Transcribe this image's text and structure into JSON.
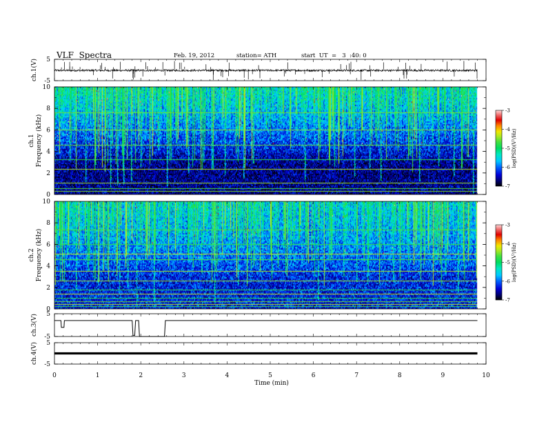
{
  "header": {
    "title": "VLF  Spectra",
    "date": "Feb. 19, 2012",
    "station": "station= ATH",
    "start": "start  UT  =   3  :40: 0"
  },
  "colorbar": {
    "label": "log(PSD)(V²/Hz)",
    "ticks": [
      "-3",
      "-4",
      "-5",
      "-6",
      "-7"
    ],
    "range": [
      -7,
      -3
    ],
    "colors": [
      "#000000",
      "#00006e",
      "#0000d8",
      "#0064ff",
      "#00c8ff",
      "#00e8c0",
      "#00dc60",
      "#40e040",
      "#b0e820",
      "#f0e800",
      "#ff8000",
      "#e00000",
      "#f07070",
      "#ffd8d8"
    ]
  },
  "chart_data": [
    {
      "type": "line",
      "ylabel": "ch.1(V)",
      "ylim": [
        -5,
        5
      ],
      "yticks": [
        "5",
        "-5"
      ],
      "x": [
        0,
        9.8
      ],
      "series": [
        {
          "values": [
            -0.2,
            -0.2
          ]
        }
      ],
      "annotations": "dense noise trace near 0 V with sharp spikes (atmospherics)"
    },
    {
      "type": "heatmap",
      "ylabel_top": "ch.1",
      "ylabel": "Frequency  (kHz)",
      "ylim": [
        0,
        10
      ],
      "yticks": [
        "0",
        "2",
        "4",
        "6",
        "8",
        "10"
      ],
      "xlim": [
        0,
        10
      ],
      "data_x_end": 9.8,
      "background_level": -6.6,
      "noise_level_high_freq": -5.4,
      "tonal_lines_khz": [
        0.3,
        0.55,
        1.1,
        2.4,
        3.3,
        4.6,
        6.0,
        7.6
      ],
      "sferic_times_min": [
        0.35,
        0.55,
        0.72,
        0.95,
        1.3,
        1.45,
        1.6,
        1.78,
        2.0,
        2.2,
        2.4,
        2.6,
        2.8,
        3.1,
        3.45,
        3.65,
        3.95,
        4.2,
        4.38,
        4.6,
        4.9,
        5.2,
        5.45,
        5.8,
        6.15,
        6.35,
        6.6,
        6.95,
        7.3,
        7.55,
        7.9,
        8.25,
        8.45,
        8.75,
        8.9,
        9.25,
        9.5,
        9.7
      ]
    },
    {
      "type": "heatmap",
      "ylabel_top": "ch.2",
      "ylabel": "Frequency  (kHz)",
      "ylim": [
        0,
        10
      ],
      "yticks": [
        "0",
        "2",
        "4",
        "6",
        "8",
        "10"
      ],
      "xlim": [
        0,
        10
      ],
      "data_x_end": 9.8,
      "background_level": -6.3,
      "noise_level_high_freq": -5.5,
      "tonal_lines_khz": [
        0.25,
        0.45,
        0.7,
        1.0,
        1.4,
        1.8,
        2.6,
        3.5,
        4.6,
        5.1,
        6.0,
        7.4
      ],
      "sferic_times_min": [
        0.3,
        0.5,
        0.75,
        1.0,
        1.25,
        1.5,
        1.7,
        1.9,
        2.1,
        2.3,
        2.55,
        2.85,
        3.1,
        3.4,
        3.7,
        3.95,
        4.25,
        4.45,
        4.7,
        5.0,
        5.3,
        5.55,
        5.85,
        6.1,
        6.4,
        6.7,
        7.0,
        7.25,
        7.55,
        7.85,
        8.2,
        8.5,
        8.8,
        9.05,
        9.35,
        9.6
      ]
    },
    {
      "type": "line",
      "ylabel": "ch.3(V)",
      "ylim": [
        -5,
        5
      ],
      "yticks": [
        "5",
        "-5"
      ],
      "x": [
        0,
        0.15,
        0.16,
        0.22,
        0.23,
        1.8,
        1.82,
        1.86,
        1.88,
        1.95,
        1.97,
        2.55,
        2.57,
        9.8
      ],
      "series": [
        {
          "values": [
            2.0,
            2.0,
            -1.0,
            -1.0,
            2.0,
            2.0,
            -4.5,
            -4.5,
            2.0,
            2.0,
            -5.0,
            -5.0,
            2.0,
            2.0
          ]
        }
      ]
    },
    {
      "type": "line",
      "ylabel": "ch.4(V)",
      "ylim": [
        -5,
        5
      ],
      "yticks": [
        "5",
        "-5"
      ],
      "x": [
        0,
        9.8
      ],
      "series": [
        {
          "values": [
            0.0,
            0.0
          ]
        }
      ]
    }
  ],
  "xaxis": {
    "label": "Time  (min)",
    "ticks": [
      "0",
      "1",
      "2",
      "3",
      "4",
      "5",
      "6",
      "7",
      "8",
      "9",
      "10"
    ],
    "xlim": [
      0,
      10
    ]
  }
}
